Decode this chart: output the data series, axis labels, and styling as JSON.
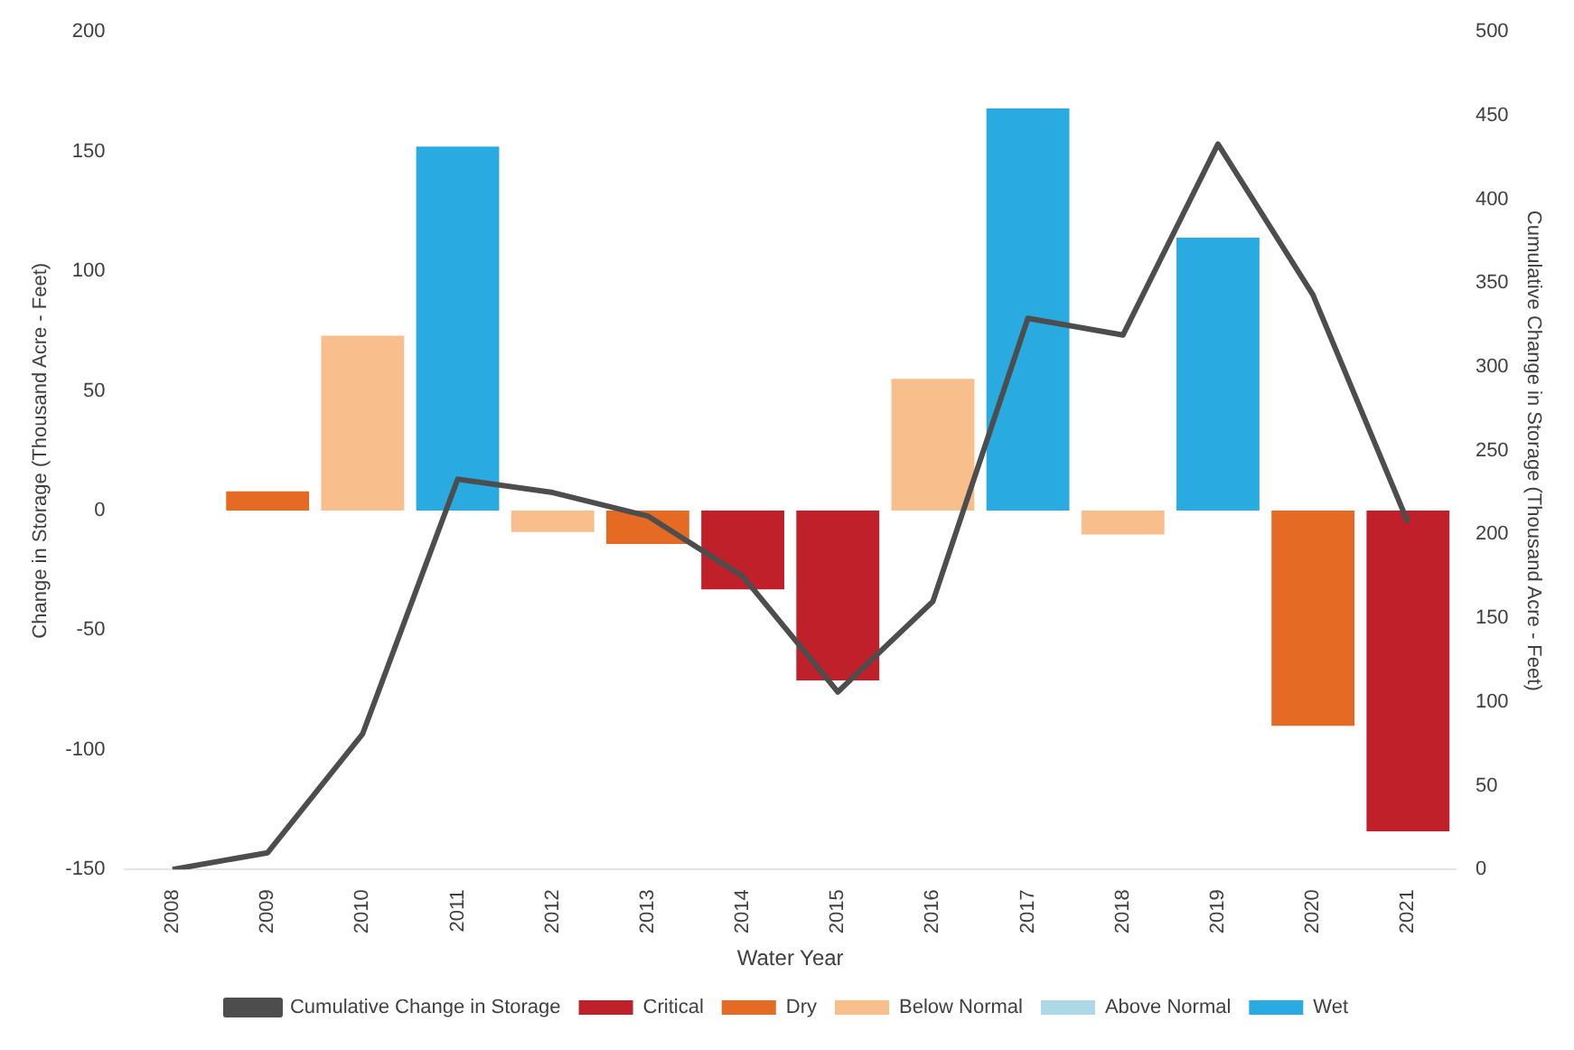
{
  "chart_data": {
    "type": "bar",
    "xlabel": "Water Year",
    "ylabel": "Change in Storage (Thousand Acre - Feet)",
    "y2label": "Cumulative Change in Storage (Thousand Acre - Feet)",
    "categories": [
      "2008",
      "2009",
      "2010",
      "2011",
      "2012",
      "2013",
      "2014",
      "2015",
      "2016",
      "2017",
      "2018",
      "2019",
      "2020",
      "2021"
    ],
    "series": [
      {
        "name": "Critical",
        "color": "#c0202a",
        "values": [
          null,
          null,
          null,
          null,
          null,
          null,
          -33,
          -71,
          null,
          null,
          null,
          null,
          null,
          -134
        ]
      },
      {
        "name": "Dry",
        "color": "#e56b25",
        "values": [
          null,
          8,
          null,
          null,
          null,
          -14,
          null,
          null,
          null,
          null,
          null,
          null,
          -90,
          null
        ]
      },
      {
        "name": "Below Normal",
        "color": "#f8bf8d",
        "values": [
          null,
          null,
          73,
          null,
          -9,
          null,
          null,
          null,
          55,
          null,
          -10,
          null,
          null,
          null
        ]
      },
      {
        "name": "Above Normal",
        "color": "#add8e6",
        "values": [
          null,
          null,
          null,
          null,
          null,
          null,
          null,
          null,
          null,
          null,
          null,
          null,
          null,
          null
        ]
      },
      {
        "name": "Wet",
        "color": "#29abe2",
        "values": [
          null,
          null,
          null,
          152,
          null,
          null,
          null,
          null,
          null,
          168,
          null,
          114,
          null,
          null
        ]
      },
      {
        "name": "Cumulative Change in Storage",
        "type": "line",
        "axis": "y2",
        "color": "#4d4d4d",
        "values": [
          0,
          10,
          81,
          233,
          225,
          211,
          175,
          106,
          160,
          329,
          319,
          433,
          343,
          207
        ]
      }
    ],
    "ylim": [
      -150,
      200
    ],
    "yticks": [
      -150,
      -100,
      -50,
      0,
      50,
      100,
      150,
      200
    ],
    "y2lim": [
      0,
      500
    ],
    "y2ticks": [
      0,
      50,
      100,
      150,
      200,
      250,
      300,
      350,
      400,
      450,
      500
    ],
    "grid": false,
    "legend": "bottom",
    "marker": "none"
  }
}
